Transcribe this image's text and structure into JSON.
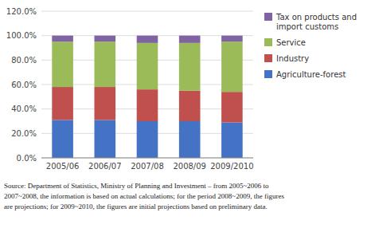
{
  "chart_data": {
    "type": "bar",
    "stacked": true,
    "grid": true,
    "legend": "right",
    "categories": [
      "2005/06",
      "2006/07",
      "2007/08",
      "2008/09",
      "2009/2010"
    ],
    "series": [
      {
        "name": "Agriculture-forest",
        "color": "#4472C4",
        "values": [
          31.0,
          31.0,
          30.0,
          30.0,
          29.0
        ]
      },
      {
        "name": "Industry",
        "color": "#C0504D",
        "values": [
          27.0,
          27.0,
          26.0,
          25.0,
          25.0
        ]
      },
      {
        "name": "Service",
        "color": "#9BBB59",
        "values": [
          37.0,
          37.0,
          38.0,
          39.0,
          41.0
        ]
      },
      {
        "name": "Tax on products and\nimport customs",
        "color": "#8064A2",
        "values": [
          5.0,
          5.0,
          6.0,
          6.0,
          5.0
        ]
      }
    ],
    "ylim": [
      0,
      120
    ],
    "yticks": [
      {
        "value": 0,
        "label": "0.0%"
      },
      {
        "value": 20,
        "label": "20.0%"
      },
      {
        "value": 40,
        "label": "40.0%"
      },
      {
        "value": 60,
        "label": "60.0%"
      },
      {
        "value": 80,
        "label": "80.0%"
      },
      {
        "value": 100,
        "label": "100.0%"
      },
      {
        "value": 120,
        "label": "120.0%"
      }
    ],
    "annotations": [
      "Source: Department of Statistics, Ministry of Planning and Investment – from 2005~2006 to",
      "2007~2008, the information is based on actual calculations; for the period 2008~2009, the figures",
      "are projections; for 2009~2010, the figures are initial projections based on preliminary data."
    ]
  }
}
